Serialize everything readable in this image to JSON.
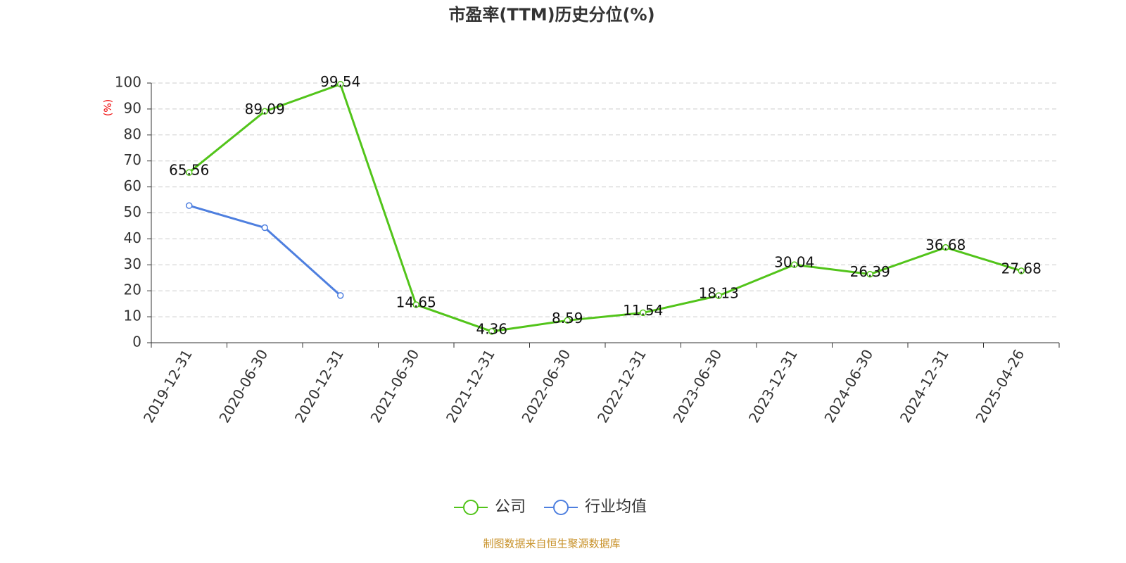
{
  "chart_data": {
    "type": "line",
    "title": "市盈率(TTM)历史分位(%)",
    "y_label": "(%)",
    "source": "制图数据来自恒生聚源数据库",
    "categories": [
      "2019-12-31",
      "2020-06-30",
      "2020-12-31",
      "2021-06-30",
      "2021-12-31",
      "2022-06-30",
      "2022-12-31",
      "2023-06-30",
      "2023-12-31",
      "2024-06-30",
      "2024-12-31",
      "2025-04-26"
    ],
    "series": [
      {
        "name": "公司",
        "color": "#52c41a",
        "values": [
          65.56,
          89.09,
          99.54,
          14.65,
          4.36,
          8.59,
          11.54,
          18.13,
          30.04,
          26.39,
          36.68,
          27.68
        ],
        "labels": true
      },
      {
        "name": "行业均值",
        "color": "#4e7fdf",
        "values": [
          52.8,
          44.3,
          18.2,
          null,
          null,
          null,
          null,
          null,
          null,
          null,
          null,
          null
        ],
        "labels": false
      }
    ],
    "ylim": [
      0,
      100
    ],
    "yticks": [
      0,
      10,
      20,
      30,
      40,
      50,
      60,
      70,
      80,
      90,
      100
    ],
    "grid": true
  }
}
